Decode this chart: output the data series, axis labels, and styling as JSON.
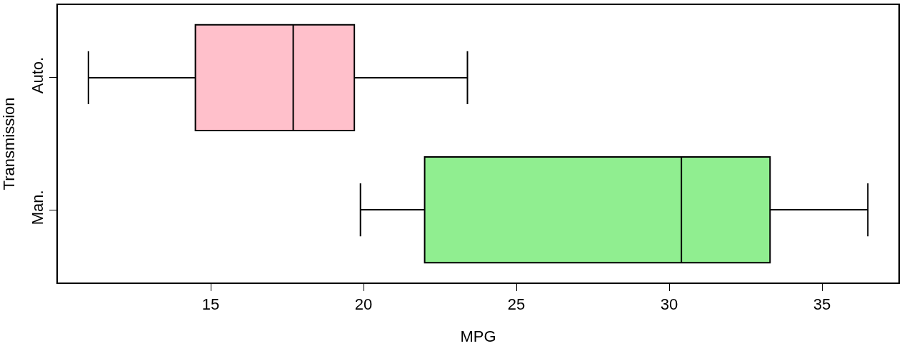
{
  "chart_data": {
    "type": "box",
    "orientation": "horizontal",
    "xlabel": "MPG",
    "ylabel": "Transmission",
    "categories": [
      "Auto.",
      "Man."
    ],
    "boxes": [
      {
        "low": 11.0,
        "q1": 14.5,
        "median": 17.7,
        "q3": 19.7,
        "high": 23.4
      },
      {
        "low": 19.9,
        "q1": 22.0,
        "median": 30.4,
        "q3": 33.3,
        "high": 36.5
      }
    ],
    "colors": [
      "#ffc0cb",
      "#90ee90"
    ],
    "xlim": [
      10,
      37.5
    ],
    "xticks": [
      15,
      20,
      25,
      30,
      35
    ],
    "grid": false
  }
}
